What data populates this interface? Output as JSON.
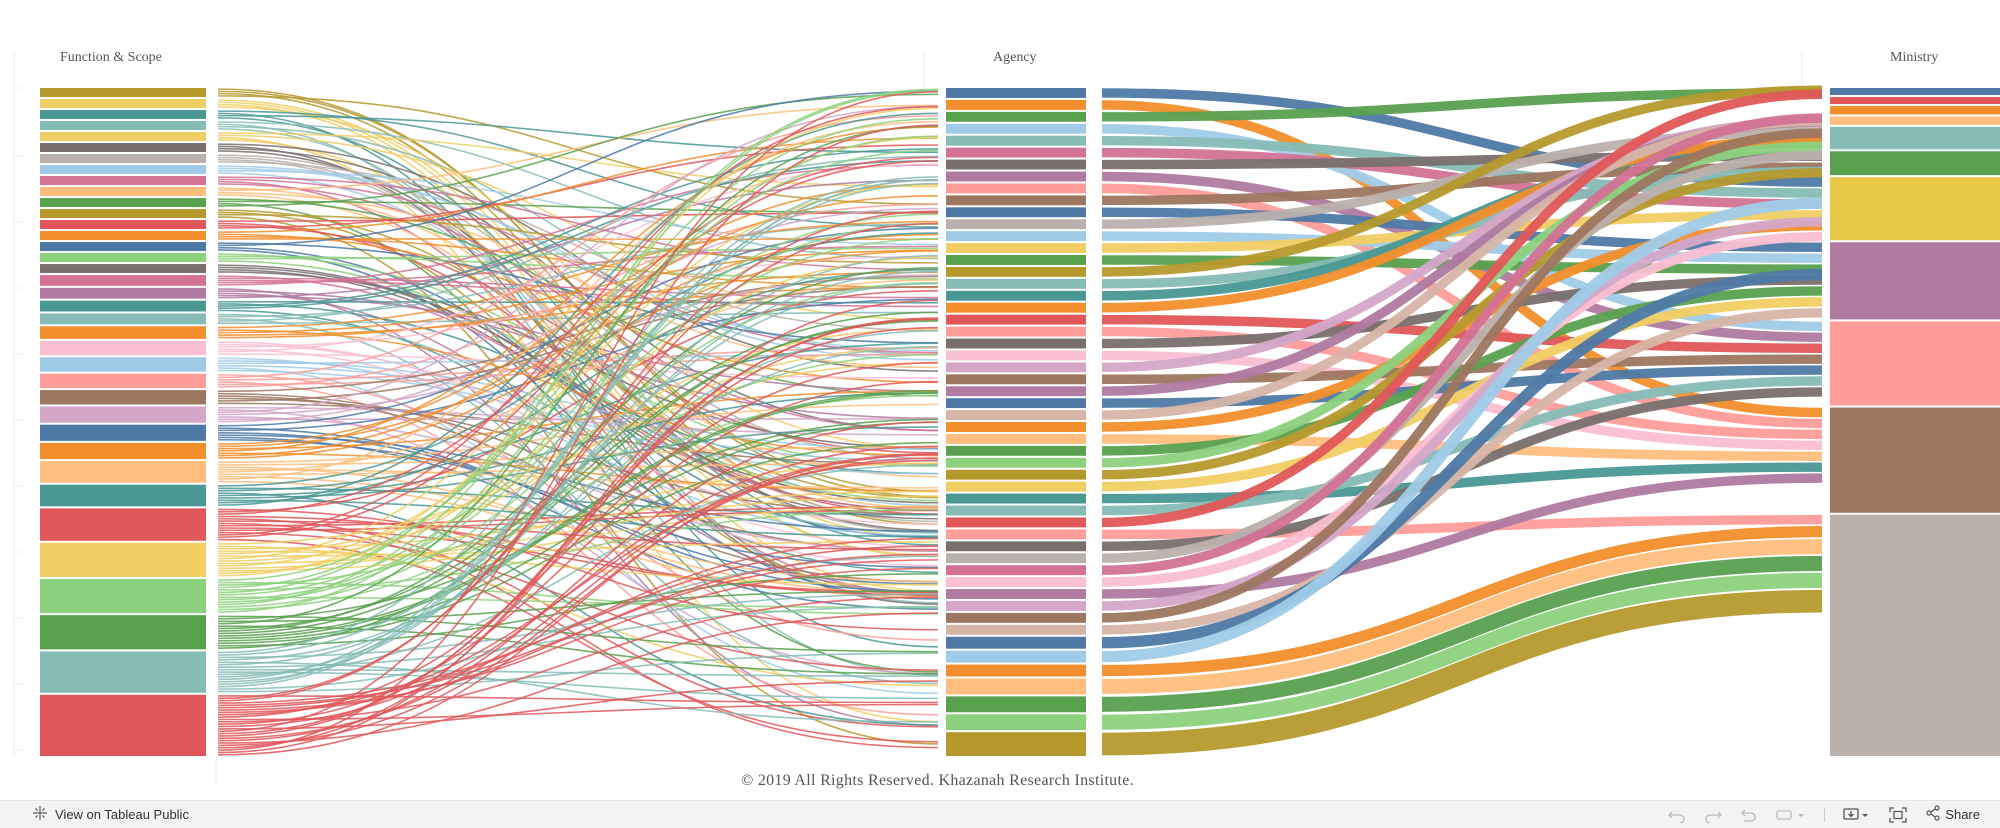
{
  "headers": {
    "function_scope": "Function & Scope",
    "agency": "Agency",
    "ministry": "Ministry"
  },
  "footer": {
    "copyright": "© 2019 All Rights Reserved. Khazanah Research Institute."
  },
  "toolbar": {
    "view_on_public": "View on Tableau Public",
    "share": "Share",
    "buttons": [
      "undo",
      "redo",
      "revert",
      "pause",
      "download",
      "fullscreen",
      "share"
    ]
  },
  "palette": [
    "#4e79a7",
    "#a0cbe8",
    "#f28e2b",
    "#ffbe7d",
    "#59a14f",
    "#8cd17d",
    "#b6992d",
    "#f1ce63",
    "#499894",
    "#86bcb6",
    "#e15759",
    "#ff9d9a",
    "#79706e",
    "#bab0ac",
    "#d37295",
    "#fabfd2",
    "#b07aa1",
    "#d4a6c8",
    "#9d7660",
    "#d7b5a6"
  ],
  "columns": {
    "function_scope": {
      "segments": [
        {
          "color": "#b6992d",
          "w": 1
        },
        {
          "color": "#f1ce63",
          "w": 1
        },
        {
          "color": "#499894",
          "w": 1
        },
        {
          "color": "#86bcb6",
          "w": 1
        },
        {
          "color": "#f1ce63",
          "w": 1
        },
        {
          "color": "#79706e",
          "w": 1
        },
        {
          "color": "#bab0ac",
          "w": 1
        },
        {
          "color": "#a0cbe8",
          "w": 1
        },
        {
          "color": "#d37295",
          "w": 1
        },
        {
          "color": "#ffbe7d",
          "w": 1
        },
        {
          "color": "#59a14f",
          "w": 1
        },
        {
          "color": "#b6992d",
          "w": 1
        },
        {
          "color": "#e15759",
          "w": 1
        },
        {
          "color": "#f28e2b",
          "w": 1
        },
        {
          "color": "#4e79a7",
          "w": 1
        },
        {
          "color": "#8cd17d",
          "w": 1
        },
        {
          "color": "#79706e",
          "w": 1
        },
        {
          "color": "#d37295",
          "w": 1.2
        },
        {
          "color": "#b07aa1",
          "w": 1.2
        },
        {
          "color": "#499894",
          "w": 1.2
        },
        {
          "color": "#86bcb6",
          "w": 1.2
        },
        {
          "color": "#f28e2b",
          "w": 1.4
        },
        {
          "color": "#fabfd2",
          "w": 1.6
        },
        {
          "color": "#a0cbe8",
          "w": 1.6
        },
        {
          "color": "#ff9d9a",
          "w": 1.6
        },
        {
          "color": "#9d7660",
          "w": 1.6
        },
        {
          "color": "#d4a6c8",
          "w": 1.8
        },
        {
          "color": "#4e79a7",
          "w": 1.8
        },
        {
          "color": "#f28e2b",
          "w": 1.8
        },
        {
          "color": "#ffbe7d",
          "w": 2.4
        },
        {
          "color": "#499894",
          "w": 2.4
        },
        {
          "color": "#e15759",
          "w": 3.6
        },
        {
          "color": "#f1ce63",
          "w": 3.8
        },
        {
          "color": "#8cd17d",
          "w": 3.8
        },
        {
          "color": "#59a14f",
          "w": 3.8
        },
        {
          "color": "#86bcb6",
          "w": 4.6
        },
        {
          "color": "#e15759",
          "w": 6.8
        }
      ]
    },
    "agency": {
      "segments": [
        {
          "color": "#4e79a7",
          "w": 1
        },
        {
          "color": "#f28e2b",
          "w": 1
        },
        {
          "color": "#59a14f",
          "w": 1
        },
        {
          "color": "#a0cbe8",
          "w": 1
        },
        {
          "color": "#86bcb6",
          "w": 1
        },
        {
          "color": "#d37295",
          "w": 1
        },
        {
          "color": "#79706e",
          "w": 1
        },
        {
          "color": "#b07aa1",
          "w": 1
        },
        {
          "color": "#ff9d9a",
          "w": 1
        },
        {
          "color": "#9d7660",
          "w": 1
        },
        {
          "color": "#4e79a7",
          "w": 1
        },
        {
          "color": "#bab0ac",
          "w": 1
        },
        {
          "color": "#a0cbe8",
          "w": 1
        },
        {
          "color": "#f1ce63",
          "w": 1
        },
        {
          "color": "#59a14f",
          "w": 1
        },
        {
          "color": "#b6992d",
          "w": 1
        },
        {
          "color": "#86bcb6",
          "w": 1
        },
        {
          "color": "#499894",
          "w": 1
        },
        {
          "color": "#f28e2b",
          "w": 1
        },
        {
          "color": "#e15759",
          "w": 1
        },
        {
          "color": "#ff9d9a",
          "w": 1
        },
        {
          "color": "#79706e",
          "w": 1
        },
        {
          "color": "#fabfd2",
          "w": 1
        },
        {
          "color": "#d4a6c8",
          "w": 1
        },
        {
          "color": "#9d7660",
          "w": 1
        },
        {
          "color": "#b07aa1",
          "w": 1
        },
        {
          "color": "#4e79a7",
          "w": 1
        },
        {
          "color": "#d7b5a6",
          "w": 1
        },
        {
          "color": "#f28e2b",
          "w": 1
        },
        {
          "color": "#ffbe7d",
          "w": 1
        },
        {
          "color": "#59a14f",
          "w": 1
        },
        {
          "color": "#8cd17d",
          "w": 1
        },
        {
          "color": "#b6992d",
          "w": 1
        },
        {
          "color": "#f1ce63",
          "w": 1
        },
        {
          "color": "#499894",
          "w": 1
        },
        {
          "color": "#86bcb6",
          "w": 1
        },
        {
          "color": "#e15759",
          "w": 1
        },
        {
          "color": "#ff9d9a",
          "w": 1
        },
        {
          "color": "#79706e",
          "w": 1
        },
        {
          "color": "#bab0ac",
          "w": 1
        },
        {
          "color": "#d37295",
          "w": 1
        },
        {
          "color": "#fabfd2",
          "w": 1
        },
        {
          "color": "#b07aa1",
          "w": 1
        },
        {
          "color": "#d4a6c8",
          "w": 1
        },
        {
          "color": "#9d7660",
          "w": 1
        },
        {
          "color": "#d7b5a6",
          "w": 1
        },
        {
          "color": "#4e79a7",
          "w": 1.2
        },
        {
          "color": "#a0cbe8",
          "w": 1.2
        },
        {
          "color": "#f28e2b",
          "w": 1.2
        },
        {
          "color": "#ffbe7d",
          "w": 1.6
        },
        {
          "color": "#59a14f",
          "w": 1.6
        },
        {
          "color": "#8cd17d",
          "w": 1.6
        },
        {
          "color": "#b6992d",
          "w": 2.4
        }
      ]
    },
    "ministry": {
      "segments": [
        {
          "color": "#4e79a7",
          "w": 0.5
        },
        {
          "color": "#e15759",
          "w": 0.5
        },
        {
          "color": "#f28e2b",
          "w": 0.6
        },
        {
          "color": "#ffbe7d",
          "w": 0.6
        },
        {
          "color": "#86bcb6",
          "w": 1.6
        },
        {
          "color": "#59a14f",
          "w": 1.7
        },
        {
          "color": "#e9c846",
          "w": 4.5
        },
        {
          "color": "#b07aa1",
          "w": 5.5
        },
        {
          "color": "#ff9d9a",
          "w": 6
        },
        {
          "color": "#9d7660",
          "w": 7.5
        },
        {
          "color": "#bab0ac",
          "w": 17.2
        }
      ]
    }
  }
}
